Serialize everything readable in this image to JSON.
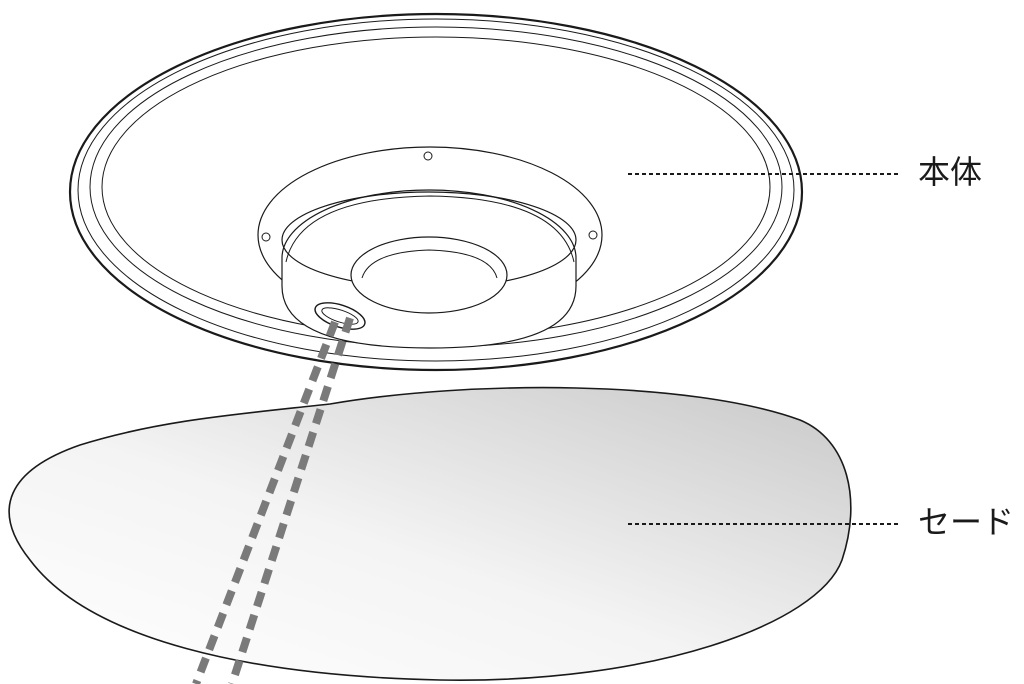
{
  "labels": {
    "body": "本体",
    "shade": "セード"
  },
  "colors": {
    "line": "#1a1a1a",
    "dash": "#7a7a7a",
    "shade_light": "#ffffff",
    "shade_dark": "#c9c9c9"
  }
}
